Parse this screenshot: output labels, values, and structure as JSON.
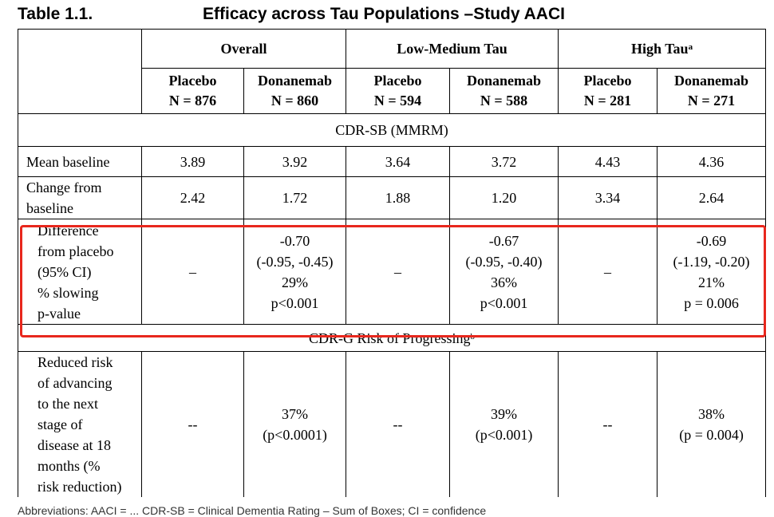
{
  "title": {
    "label": "Table 1.1.",
    "text": "Efficacy across Tau Populations –Study AACI"
  },
  "groups": {
    "overall": "Overall",
    "low_medium": "Low-Medium Tau",
    "high": "High Tau",
    "high_sup": "a"
  },
  "arms": [
    {
      "name": "Placebo",
      "n": "N = 876"
    },
    {
      "name": "Donanemab",
      "n": "N = 860"
    },
    {
      "name": "Placebo",
      "n": "N = 594"
    },
    {
      "name": "Donanemab",
      "n": "N = 588"
    },
    {
      "name": "Placebo",
      "n": "N = 281"
    },
    {
      "name": "Donanemab",
      "n": "N = 271"
    }
  ],
  "section1": "CDR-SB (MMRM)",
  "mean_baseline": {
    "label": "Mean baseline",
    "values": [
      "3.89",
      "3.92",
      "3.64",
      "3.72",
      "4.43",
      "4.36"
    ]
  },
  "change_baseline": {
    "label_lines": [
      "Change from",
      "baseline"
    ],
    "values": [
      "2.42",
      "1.72",
      "1.88",
      "1.20",
      "3.34",
      "2.64"
    ]
  },
  "difference": {
    "label_lines": [
      "Difference",
      "from placebo",
      "(95% CI)",
      "% slowing",
      "p-value"
    ],
    "placebo_dash": "–",
    "overall": [
      "-0.70",
      "(-0.95, -0.45)",
      "29%",
      "p<0.001"
    ],
    "low_medium": [
      "-0.67",
      "(-0.95, -0.40)",
      "36%",
      "p<0.001"
    ],
    "high": [
      "-0.69",
      "(-1.19, -0.20)",
      "21%",
      "p = 0.006"
    ]
  },
  "section2": {
    "text": "CDR-G Risk of Progressing",
    "sup": "b"
  },
  "reduced_risk": {
    "label_lines": [
      "Reduced risk",
      "of advancing",
      "to the next",
      "stage of",
      "disease at 18",
      "months (%",
      "risk reduction)"
    ],
    "placebo_dash": "--",
    "overall": [
      "37%",
      "(p<0.0001)"
    ],
    "low_medium": [
      "39%",
      "(p<0.001)"
    ],
    "high": [
      "38%",
      "(p = 0.004)"
    ]
  },
  "footnote": "Abbreviations: AACI = ... CDR-SB = Clinical Dementia Rating – Sum of Boxes; CI = confidence"
}
